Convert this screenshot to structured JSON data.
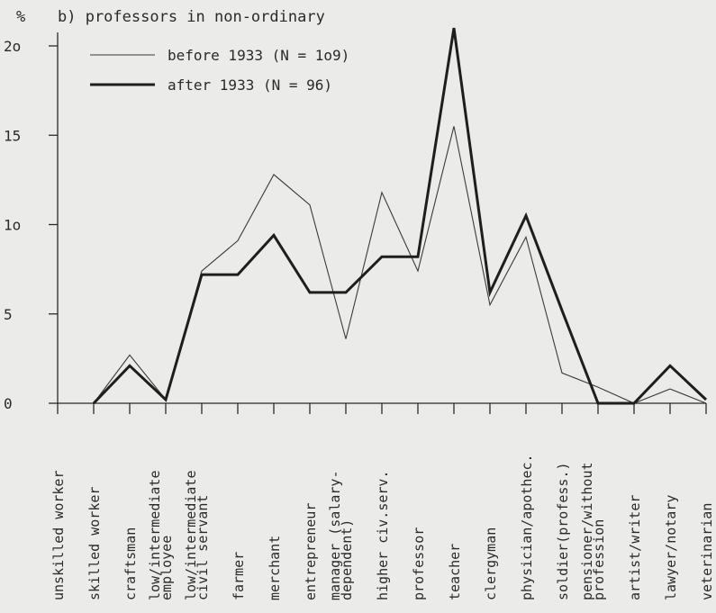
{
  "chart_data": {
    "type": "line",
    "title": "b) professors in non-ordinary",
    "ylabel": "%",
    "ylim": [
      0,
      21
    ],
    "ytick_labels": [
      {
        "value": 0,
        "label": "0"
      },
      {
        "value": 5,
        "label": "5"
      },
      {
        "value": 10,
        "label": "1o"
      },
      {
        "value": 15,
        "label": "15"
      },
      {
        "value": 20,
        "label": "2o"
      }
    ],
    "categories": [
      "unskilled worker",
      "skilled worker",
      "craftsman",
      "low/intermediate|employee",
      "low/intermediate|civil servant",
      "farmer",
      "merchant",
      "entrepreneur",
      "manager (salary-|dependent)",
      "higher civ.serv.",
      "professor",
      "teacher",
      "clergyman",
      "physician/apothec.",
      "soldier(profess.)",
      "pensioner/without|profession",
      "artist/writer",
      "lawyer/notary",
      "veterinarian"
    ],
    "grid": false,
    "legend_position": "top-left",
    "series": [
      {
        "name": "before 1933 (N = 1o9)",
        "color": "#3a3a3a",
        "style": "thin",
        "values": [
          null,
          0,
          2.7,
          0.2,
          7.4,
          9.1,
          12.8,
          11.1,
          3.6,
          11.8,
          7.4,
          15.5,
          5.5,
          9.3,
          1.7,
          0.9,
          0,
          0.8,
          0
        ]
      },
      {
        "name": "after 1933 (N = 96)",
        "color": "#1e1e1e",
        "style": "thick",
        "values": [
          null,
          0,
          2.1,
          0.2,
          7.2,
          7.2,
          9.4,
          6.2,
          6.2,
          8.2,
          8.2,
          21.0,
          6.2,
          10.5,
          5.2,
          0,
          0,
          2.1,
          0.2
        ]
      }
    ]
  }
}
